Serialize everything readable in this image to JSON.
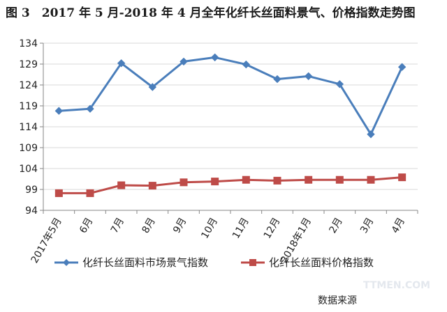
{
  "chart_data": {
    "type": "line",
    "title": "图 3　2017 年 5 月-2018 年 4 月全年化纤长丝面料景气、价格指数走势图",
    "categories": [
      "2017年5月",
      "6月",
      "7月",
      "8月",
      "9月",
      "10月",
      "11月",
      "12月",
      "2018年1月",
      "2月",
      "3月",
      "4月"
    ],
    "ylim": [
      94,
      134
    ],
    "yticks": [
      94,
      99,
      104,
      109,
      114,
      119,
      124,
      129,
      134
    ],
    "grid": true,
    "legend_position": "bottom",
    "series": [
      {
        "name": "化纤长丝面料市场景气指数",
        "color": "#4a7ebb",
        "marker": "diamond",
        "values": [
          117.8,
          118.3,
          129.2,
          123.5,
          129.6,
          130.6,
          128.9,
          125.4,
          126.1,
          124.2,
          112.2,
          128.3
        ]
      },
      {
        "name": "化纤长丝面料价格指数",
        "color": "#be4b48",
        "marker": "square",
        "values": [
          98.1,
          98.1,
          100.0,
          99.9,
          100.7,
          100.9,
          101.3,
          101.1,
          101.3,
          101.3,
          101.3,
          101.9
        ]
      }
    ]
  },
  "source_label": "数据来源",
  "watermark": "TTMEN.COM"
}
